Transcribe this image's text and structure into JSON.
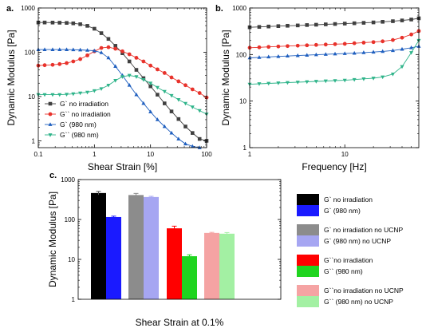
{
  "chart_data": [
    {
      "panel": "a.",
      "type": "line",
      "xlabel": "Shear Strain [%]",
      "ylabel": "Dynamic Modulus [Pa]",
      "xscale": "log",
      "yscale": "log",
      "xlim": [
        0.1,
        100
      ],
      "ylim": [
        0.7,
        1000
      ],
      "x_ticks": [
        0.1,
        1,
        10,
        100
      ],
      "x_tick_labels": [
        "0.1",
        "1",
        "10",
        "100"
      ],
      "y_ticks": [
        1,
        10,
        100,
        1000
      ],
      "y_tick_labels": [
        "1",
        "10",
        "100",
        "1000"
      ],
      "legend_position": "bottom-left",
      "series": [
        {
          "name": "G` no irradiation",
          "color": "#404040",
          "marker": "square",
          "x": [
            0.1,
            0.13,
            0.18,
            0.24,
            0.32,
            0.42,
            0.56,
            0.75,
            1.0,
            1.33,
            1.78,
            2.37,
            3.16,
            4.2,
            5.6,
            7.5,
            10,
            13.3,
            17.8,
            23.7,
            31.6,
            42,
            56,
            75,
            100
          ],
          "y": [
            470,
            470,
            468,
            465,
            460,
            450,
            430,
            395,
            340,
            270,
            200,
            140,
            95,
            62,
            40,
            26,
            17,
            11,
            7,
            4.6,
            3.1,
            2.1,
            1.5,
            1.1,
            1.0
          ]
        },
        {
          "name": "G`` no irradiation",
          "color": "#e8322b",
          "marker": "circle",
          "x": [
            0.1,
            0.13,
            0.18,
            0.24,
            0.32,
            0.42,
            0.56,
            0.75,
            1.0,
            1.33,
            1.78,
            2.37,
            3.16,
            4.2,
            5.6,
            7.5,
            10,
            13.3,
            17.8,
            23.7,
            31.6,
            42,
            56,
            75,
            100
          ],
          "y": [
            50,
            51,
            52,
            54,
            57,
            62,
            70,
            85,
            105,
            125,
            130,
            120,
            105,
            90,
            75,
            62,
            50,
            41,
            34,
            27,
            22,
            18,
            14.5,
            12,
            9.5
          ]
        },
        {
          "name": "G` (980 nm)",
          "color": "#1f5fbf",
          "marker": "triangle-up",
          "x": [
            0.1,
            0.13,
            0.18,
            0.24,
            0.32,
            0.42,
            0.56,
            0.75,
            1.0,
            1.33,
            1.78,
            2.37,
            3.16,
            4.2,
            5.6,
            7.5,
            10,
            13.3,
            17.8,
            23.7,
            31.6,
            42,
            56,
            75
          ],
          "y": [
            115,
            115,
            115,
            115,
            115,
            114,
            113,
            111,
            108,
            98,
            75,
            48,
            30,
            18,
            11,
            7,
            4.5,
            3.0,
            2.1,
            1.5,
            1.1,
            0.85,
            0.75,
            0.7
          ]
        },
        {
          "name": "G`` (980 nm)",
          "color": "#2fb48a",
          "marker": "triangle-down",
          "x": [
            0.1,
            0.13,
            0.18,
            0.24,
            0.32,
            0.42,
            0.56,
            0.75,
            1.0,
            1.33,
            1.78,
            2.37,
            3.16,
            4.2,
            5.6,
            7.5,
            10,
            13.3,
            17.8,
            23.7,
            31.6,
            42,
            56,
            75,
            100
          ],
          "y": [
            11,
            11,
            11,
            11,
            11.2,
            11.5,
            12,
            12.5,
            13.5,
            15,
            18,
            23,
            28,
            30,
            28,
            24,
            20,
            16,
            13,
            10.5,
            8.5,
            7,
            5.8,
            4.8,
            4
          ]
        }
      ]
    },
    {
      "panel": "b.",
      "type": "line",
      "xlabel": "Frequency [Hz]",
      "ylabel": "Dynamic Modulus [Pa]",
      "xscale": "log",
      "yscale": "log",
      "xlim": [
        1,
        60
      ],
      "ylim": [
        1,
        1000
      ],
      "x_ticks": [
        1,
        10
      ],
      "x_tick_labels": [
        "1",
        "10"
      ],
      "y_ticks": [
        1,
        10,
        100,
        1000
      ],
      "y_tick_labels": [
        "1",
        "10",
        "100",
        "1000"
      ],
      "series": [
        {
          "name": "G` no irradiation",
          "color": "#404040",
          "marker": "square",
          "x": [
            1,
            1.26,
            1.58,
            2.0,
            2.5,
            3.2,
            4.0,
            5.0,
            6.3,
            7.9,
            10,
            12.6,
            15.8,
            20,
            25,
            32,
            40,
            50,
            60
          ],
          "y": [
            385,
            392,
            400,
            408,
            415,
            422,
            430,
            437,
            445,
            453,
            462,
            470,
            480,
            490,
            505,
            520,
            540,
            565,
            600
          ]
        },
        {
          "name": "G`` no irradiation",
          "color": "#e8322b",
          "marker": "circle",
          "x": [
            1,
            1.26,
            1.58,
            2.0,
            2.5,
            3.2,
            4.0,
            5.0,
            6.3,
            7.9,
            10,
            12.6,
            15.8,
            20,
            25,
            32,
            40,
            50,
            60
          ],
          "y": [
            140,
            143,
            146,
            149,
            152,
            155,
            158,
            161,
            164,
            167,
            170,
            175,
            180,
            185,
            192,
            205,
            230,
            270,
            320
          ]
        },
        {
          "name": "G` (980 nm)",
          "color": "#1f5fbf",
          "marker": "triangle-up",
          "x": [
            1,
            1.26,
            1.58,
            2.0,
            2.5,
            3.2,
            4.0,
            5.0,
            6.3,
            7.9,
            10,
            12.6,
            15.8,
            20,
            25,
            32,
            40,
            50,
            60
          ],
          "y": [
            85,
            87,
            89,
            91,
            93,
            95,
            97,
            99,
            101,
            103,
            105,
            107,
            110,
            113,
            117,
            122,
            130,
            140,
            150
          ]
        },
        {
          "name": "G`` (980 nm)",
          "color": "#2fb48a",
          "marker": "triangle-down",
          "x": [
            1,
            1.26,
            1.58,
            2.0,
            2.5,
            3.2,
            4.0,
            5.0,
            6.3,
            7.9,
            10,
            12.6,
            15.8,
            20,
            25,
            32,
            40,
            50,
            60
          ],
          "y": [
            23,
            23.5,
            24,
            24.5,
            25,
            25.5,
            26,
            26.5,
            27,
            27.5,
            28,
            29,
            30,
            31,
            33,
            38,
            55,
            110,
            200
          ]
        }
      ]
    },
    {
      "panel": "c.",
      "type": "bar",
      "xlabel": "Shear Strain at 0.1%",
      "ylabel": "Dynamic Modulus [Pa]",
      "yscale": "log",
      "ylim": [
        1,
        1000
      ],
      "y_ticks": [
        1,
        10,
        100,
        1000
      ],
      "y_tick_labels": [
        "1",
        "10",
        "100",
        "1000"
      ],
      "bars": [
        {
          "name": "G` no irradiation",
          "value": 460,
          "error": 45,
          "color": "#000000"
        },
        {
          "name": "G` (980 nm)",
          "value": 115,
          "error": 6,
          "color": "#1a1aff"
        },
        {
          "name": "G` no irradiation no UCNP",
          "value": 410,
          "error": 40,
          "color": "#8c8c8c"
        },
        {
          "name": "G` (980 nm) no UCNP",
          "value": 365,
          "error": 15,
          "color": "#a6a6f2"
        },
        {
          "name": "G``no irradiation",
          "value": 60,
          "error": 8,
          "color": "#ff0000"
        },
        {
          "name": "G`` (980 nm)",
          "value": 12,
          "error": 1,
          "color": "#1fd41f"
        },
        {
          "name": "G``no irradiation no UCNP",
          "value": 46,
          "error": 1.5,
          "color": "#f5a3a3"
        },
        {
          "name": "G`` (980 nm) no UCNP",
          "value": 44,
          "error": 3,
          "color": "#a3f0a3"
        }
      ]
    }
  ]
}
